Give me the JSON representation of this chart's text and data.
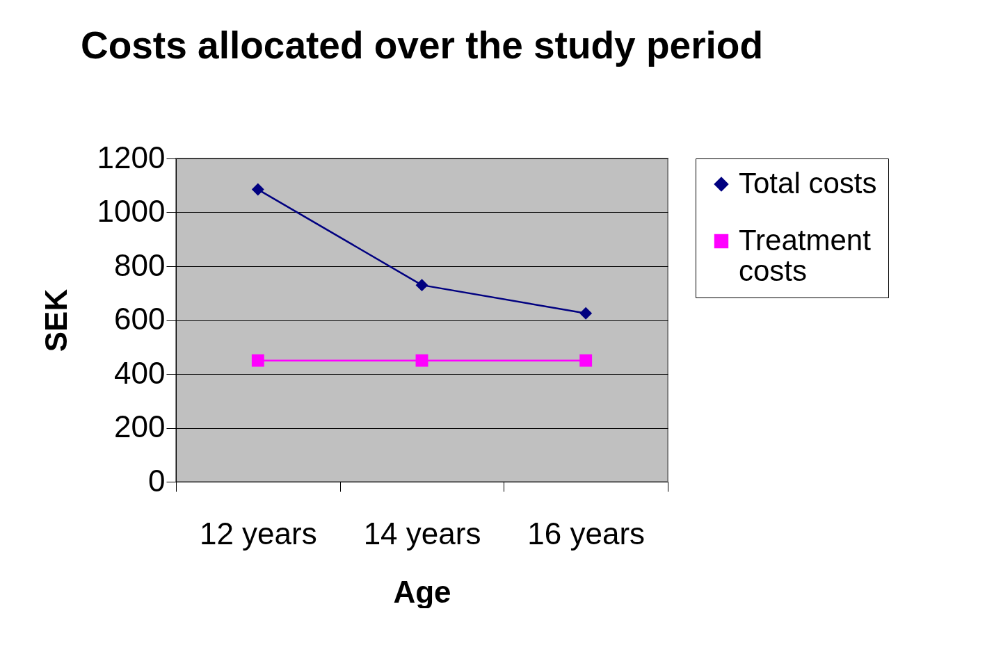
{
  "chart_data": {
    "type": "line",
    "title": "Costs allocated over the study period",
    "xlabel": "Age",
    "ylabel": "SEK",
    "categories": [
      "12 years",
      "14 years",
      "16 years"
    ],
    "series": [
      {
        "name": "Total costs",
        "color": "#000080",
        "marker": "diamond",
        "values": [
          1085,
          730,
          625
        ]
      },
      {
        "name": "Treatment costs",
        "color": "#ff00ff",
        "marker": "square",
        "values": [
          450,
          450,
          450
        ]
      }
    ],
    "ylim": [
      0,
      1200
    ],
    "yticks": [
      0,
      200,
      400,
      600,
      800,
      1000,
      1200
    ],
    "grid": "y",
    "legend": "right"
  }
}
